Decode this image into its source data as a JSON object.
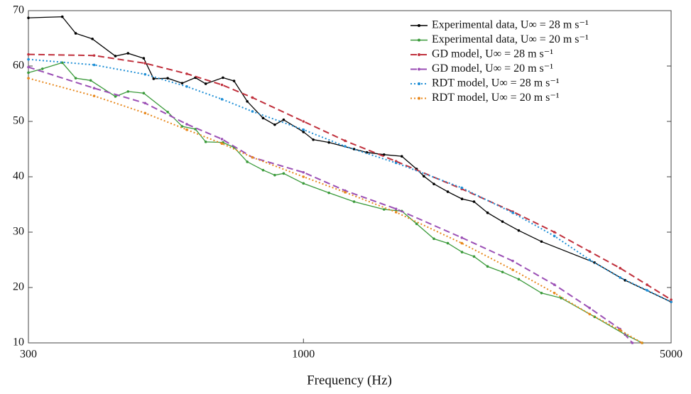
{
  "chart_data": {
    "type": "line",
    "x_label": "Frequency (Hz)",
    "xscale": "log",
    "xlim": [
      300,
      5000
    ],
    "xticks": [
      300,
      1000,
      5000
    ],
    "ylim": [
      10,
      70
    ],
    "yticks": [
      10,
      20,
      30,
      40,
      50,
      60,
      70
    ],
    "grid": false,
    "legend": "upper-right",
    "series": [
      {
        "name": "Experimental data, U∞ = 28 m s⁻¹",
        "color": "#000000",
        "style": "solid",
        "x": [
          300,
          348,
          369,
          397,
          439,
          464,
          497,
          519,
          552,
          588,
          623,
          652,
          703,
          738,
          782,
          838,
          882,
          917,
          1000,
          1044,
          1118,
          1248,
          1320,
          1423,
          1538,
          1641,
          1694,
          1770,
          1881,
          2002,
          2110,
          2239,
          2390,
          2566,
          2835,
          3577,
          4089,
          5000
        ],
        "values": [
          68.7,
          68.9,
          65.9,
          64.9,
          61.8,
          62.3,
          61.4,
          57.7,
          57.8,
          56.9,
          57.9,
          56.8,
          57.9,
          57.3,
          53.6,
          50.6,
          49.4,
          50.3,
          48.1,
          46.7,
          46.2,
          45,
          44.4,
          44,
          43.7,
          41.4,
          40.1,
          38.7,
          37.3,
          36,
          35.5,
          33.5,
          31.9,
          30.3,
          28.3,
          24.5,
          21.3,
          17.4
        ]
      },
      {
        "name": "Experimental data, U∞ = 20 m s⁻¹",
        "color": "#3a9a3a",
        "style": "solid",
        "x": [
          300,
          319,
          348,
          369,
          394,
          439,
          464,
          497,
          552,
          588,
          623,
          652,
          703,
          738,
          782,
          838,
          882,
          917,
          1000,
          1118,
          1248,
          1423,
          1538,
          1641,
          1770,
          1881,
          2002,
          2110,
          2239,
          2390,
          2566,
          2835,
          3089,
          3577,
          4089,
          4406
        ],
        "values": [
          58.8,
          59.5,
          60.6,
          57.8,
          57.4,
          54.5,
          55.4,
          55.1,
          51.7,
          49.1,
          48.6,
          46.3,
          46.2,
          45.3,
          42.7,
          41.2,
          40.3,
          40.6,
          38.8,
          37.1,
          35.5,
          34.1,
          33.8,
          31.5,
          28.8,
          28,
          26.4,
          25.6,
          23.8,
          22.8,
          21.5,
          19,
          18.1,
          14.7,
          11.5,
          10
        ]
      },
      {
        "name": "GD model, U∞ = 28 m s⁻¹",
        "color": "#c0303c",
        "style": "dashed",
        "x": [
          300,
          400,
          500,
          600,
          700,
          800,
          1000,
          1200,
          1500,
          2000,
          2500,
          3000,
          3500,
          4000,
          4500,
          5000
        ],
        "values": [
          62.1,
          61.9,
          60.5,
          58.6,
          56.6,
          54.3,
          50,
          46.5,
          42.8,
          37.8,
          33.7,
          30,
          26.5,
          23.5,
          20.5,
          17.8
        ]
      },
      {
        "name": "GD model, U∞ = 20 m s⁻¹",
        "color": "#9b4fb5",
        "style": "dashed",
        "x": [
          300,
          400,
          500,
          600,
          700,
          800,
          1000,
          1200,
          1500,
          2000,
          2500,
          3000,
          3500,
          4000,
          4220
        ],
        "values": [
          59.8,
          56,
          53.3,
          49.5,
          46.8,
          43.5,
          40.8,
          37.5,
          34.2,
          29,
          24.8,
          20.5,
          16.3,
          12.5,
          10
        ]
      },
      {
        "name": "RDT model, U∞ = 28 m s⁻¹",
        "color": "#1f8fd6",
        "style": "dotted",
        "x": [
          300,
          400,
          500,
          600,
          700,
          800,
          1000,
          1200,
          1500,
          2000,
          2500,
          3000,
          3500,
          4000,
          4500,
          5000
        ],
        "values": [
          61.2,
          60.2,
          58.5,
          56.3,
          54,
          51.8,
          48.5,
          45.5,
          42.5,
          38,
          33.5,
          29.3,
          25,
          21.8,
          19.5,
          17.4
        ]
      },
      {
        "name": "RDT model, U∞ = 20 m s⁻¹",
        "color": "#e8881c",
        "style": "dotted",
        "x": [
          300,
          400,
          500,
          600,
          700,
          800,
          1000,
          1200,
          1500,
          2000,
          2500,
          3000,
          3500,
          4000,
          4400
        ],
        "values": [
          57.8,
          54.6,
          51.5,
          48.5,
          46,
          43.5,
          40,
          37.2,
          33.6,
          28,
          23.2,
          19,
          15.2,
          12.3,
          10
        ]
      }
    ]
  }
}
